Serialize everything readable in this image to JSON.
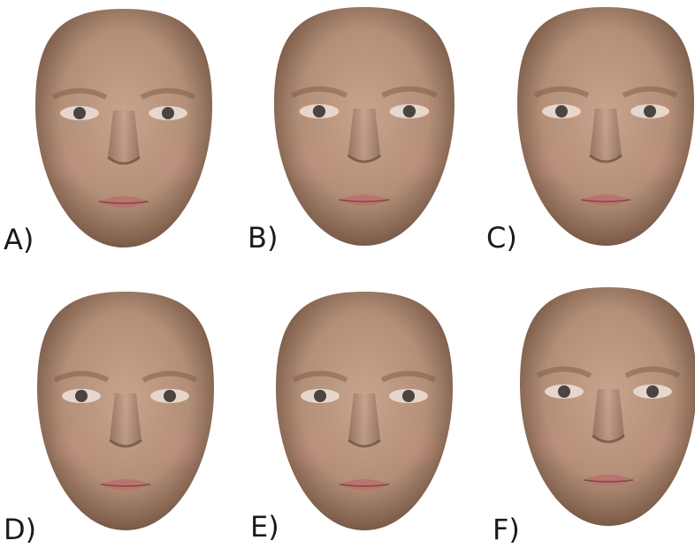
{
  "panels": [
    {
      "label": "A)"
    },
    {
      "label": "B)"
    },
    {
      "label": "C)"
    },
    {
      "label": "D)"
    },
    {
      "label": "E)"
    },
    {
      "label": "F)"
    }
  ]
}
